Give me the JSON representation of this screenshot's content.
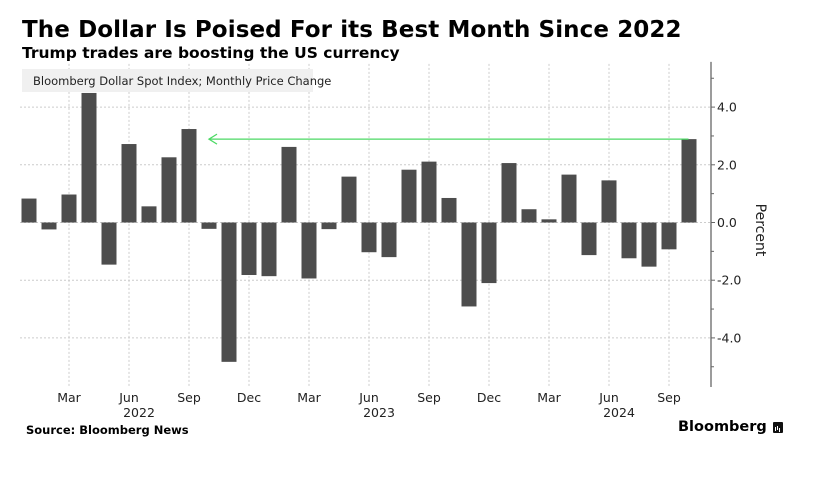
{
  "header": {
    "title": "The Dollar Is Poised For its Best Month Since 2022",
    "subtitle": "Trump trades are boosting the US currency"
  },
  "footer": {
    "source": "Source: Bloomberg News",
    "brand": "Bloomberg"
  },
  "colors": {
    "bar": "#4d4d4d",
    "arrow": "#4cd964",
    "grid": "#cccccc",
    "legend_bg": "#f0f0f0"
  },
  "chart_data": {
    "type": "bar",
    "title": "The Dollar Is Poised For its Best Month Since 2022",
    "subtitle": "Trump trades are boosting the US currency",
    "legend": [
      "Bloomberg Dollar Spot Index; Monthly Price Change"
    ],
    "legend_position": "top-left",
    "xlabel": "",
    "ylabel": "Percent",
    "y_axis_side": "right",
    "ylim": [
      -5.7,
      5.5
    ],
    "yticks": [
      4.0,
      2.0,
      0.0,
      -2.0,
      -4.0
    ],
    "ytick_labels": [
      "4.0",
      "2.0",
      "0.0",
      "-2.0",
      "-4.0"
    ],
    "grid": true,
    "x_tick_labels": [
      {
        "month": "Mar",
        "index": 2
      },
      {
        "month": "Jun",
        "index": 5,
        "year": "2022"
      },
      {
        "month": "Sep",
        "index": 8
      },
      {
        "month": "Dec",
        "index": 11
      },
      {
        "month": "Mar",
        "index": 14
      },
      {
        "month": "Jun",
        "index": 17,
        "year": "2023"
      },
      {
        "month": "Sep",
        "index": 20
      },
      {
        "month": "Dec",
        "index": 23
      },
      {
        "month": "Mar",
        "index": 26
      },
      {
        "month": "Jun",
        "index": 29,
        "year": "2024"
      },
      {
        "month": "Sep",
        "index": 32
      }
    ],
    "categories": [
      "2022-01",
      "2022-02",
      "2022-03",
      "2022-04",
      "2022-05",
      "2022-06",
      "2022-07",
      "2022-08",
      "2022-09",
      "2022-10",
      "2022-11",
      "2022-12",
      "2023-01",
      "2023-02",
      "2023-03",
      "2023-04",
      "2023-05",
      "2023-06",
      "2023-07",
      "2023-08",
      "2023-09",
      "2023-10",
      "2023-11",
      "2023-12",
      "2024-01",
      "2024-02",
      "2024-03",
      "2024-04",
      "2024-05",
      "2024-06",
      "2024-07",
      "2024-08",
      "2024-09",
      "2024-10"
    ],
    "series": [
      {
        "name": "Bloomberg Dollar Spot Index; Monthly Price Change",
        "values": [
          0.83,
          -0.24,
          0.97,
          4.49,
          -1.46,
          2.72,
          0.56,
          2.26,
          3.24,
          -0.22,
          -4.83,
          -1.82,
          -1.86,
          2.62,
          -1.94,
          -0.23,
          1.59,
          -1.03,
          -1.2,
          1.83,
          2.11,
          0.85,
          -2.91,
          -2.1,
          2.06,
          0.46,
          0.11,
          1.66,
          -1.13,
          1.46,
          -1.24,
          -1.53,
          -0.93,
          2.89
        ]
      }
    ],
    "annotations": [
      {
        "type": "arrow",
        "from_index": 33,
        "to_index": 8,
        "value": 2.89,
        "color": "#4cd964",
        "description": "Arrow from latest month back to Sep 2022 level"
      }
    ]
  }
}
